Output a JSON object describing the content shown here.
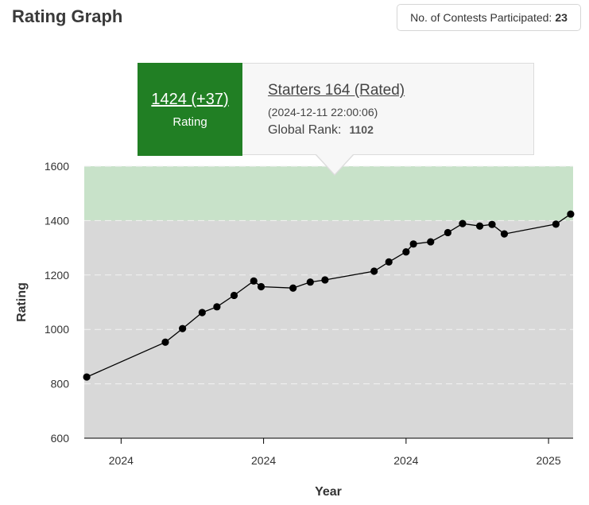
{
  "header": {
    "title": "Rating Graph"
  },
  "summary": {
    "label": "No. of Contests Participated:",
    "count": "23"
  },
  "tooltip": {
    "rating": "1424 (+37)",
    "rating_label": "Rating",
    "contest": "Starters 164 (Rated)",
    "date": "(2024-12-11 22:00:06)",
    "rank_label": "Global Rank:",
    "rank_value": "1102"
  },
  "chart_data": {
    "type": "line",
    "xlabel": "Year",
    "ylabel": "Rating",
    "ylim": [
      600,
      1600
    ],
    "yticks": [
      600,
      800,
      1000,
      1200,
      1400,
      1600
    ],
    "xticks": [
      {
        "label": "2024",
        "t": 1.5
      },
      {
        "label": "2024",
        "t": 7.3
      },
      {
        "label": "2024",
        "t": 13.1
      },
      {
        "label": "2025",
        "t": 18.9
      }
    ],
    "x_range": [
      0,
      19.9
    ],
    "band": {
      "from": 1400,
      "to": 1600,
      "color": "#c8e2c9"
    },
    "background_color": "#d8d8d8",
    "grid": true,
    "points": [
      {
        "t": 0.1,
        "y": 825
      },
      {
        "t": 3.3,
        "y": 953
      },
      {
        "t": 4.0,
        "y": 1003
      },
      {
        "t": 4.8,
        "y": 1062
      },
      {
        "t": 5.4,
        "y": 1083
      },
      {
        "t": 6.1,
        "y": 1125
      },
      {
        "t": 6.9,
        "y": 1178
      },
      {
        "t": 7.2,
        "y": 1157
      },
      {
        "t": 8.5,
        "y": 1152
      },
      {
        "t": 9.2,
        "y": 1174
      },
      {
        "t": 9.8,
        "y": 1182
      },
      {
        "t": 11.8,
        "y": 1214
      },
      {
        "t": 12.4,
        "y": 1248
      },
      {
        "t": 13.1,
        "y": 1285
      },
      {
        "t": 13.4,
        "y": 1314
      },
      {
        "t": 14.1,
        "y": 1322
      },
      {
        "t": 14.8,
        "y": 1356
      },
      {
        "t": 15.4,
        "y": 1389
      },
      {
        "t": 16.1,
        "y": 1380
      },
      {
        "t": 16.6,
        "y": 1386
      },
      {
        "t": 17.1,
        "y": 1351
      },
      {
        "t": 19.2,
        "y": 1387
      },
      {
        "t": 19.8,
        "y": 1424
      }
    ],
    "line_color": "#000000",
    "marker_color": "#000000"
  }
}
